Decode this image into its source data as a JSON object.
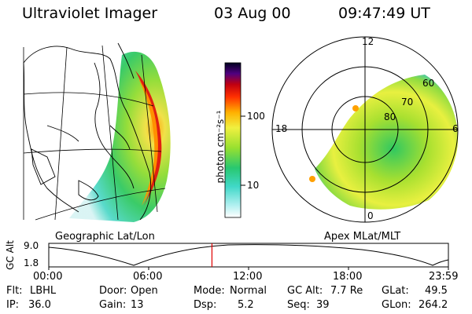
{
  "header": {
    "instrument": "Ultraviolet Imager",
    "date": "03 Aug 00",
    "time": "09:47:49 UT"
  },
  "left_panel": {
    "label": "Geographic Lat/Lon"
  },
  "right_panel": {
    "label": "Apex MLat/MLT",
    "mlt_labels": {
      "top": "12",
      "left": "18",
      "right": "6",
      "bottom": "0"
    },
    "lat_labels": [
      "60",
      "70",
      "80"
    ]
  },
  "colorbar": {
    "unit_label": "photon cm⁻²s⁻¹",
    "ticks": [
      "100",
      "10"
    ],
    "scale": "log",
    "colors": [
      "#ffffff",
      "#b0f0f0",
      "#40d8c8",
      "#28c870",
      "#98e030",
      "#f0f040",
      "#ffb000",
      "#ff3000",
      "#c00010",
      "#500080",
      "#000020"
    ]
  },
  "altitude_plot": {
    "ylabel": "GC Alt",
    "yticks": [
      "9.0",
      "1.8"
    ],
    "xticks": [
      "00:00",
      "06:00",
      "12:00",
      "18:00",
      "23:59"
    ],
    "current_time_hours": 9.8,
    "marker_color": "#e00000"
  },
  "footer": {
    "flt_label": "Flt:",
    "flt_value": "LBHL",
    "ip_label": "IP:",
    "ip_value": "36.0",
    "door_label": "Door:",
    "door_value": "Open",
    "gain_label": "Gain:",
    "gain_value": "13",
    "mode_label": "Mode:",
    "mode_value": "Normal",
    "dsp_label": "Dsp:",
    "dsp_value": "5.2",
    "gcalt_label": "GC Alt:",
    "gcalt_value": "7.7 Re",
    "seq_label": "Seq:",
    "seq_value": "39",
    "glat_label": "GLat:",
    "glat_value": "49.5",
    "glon_label": "GLon:",
    "glon_value": "264.2"
  }
}
